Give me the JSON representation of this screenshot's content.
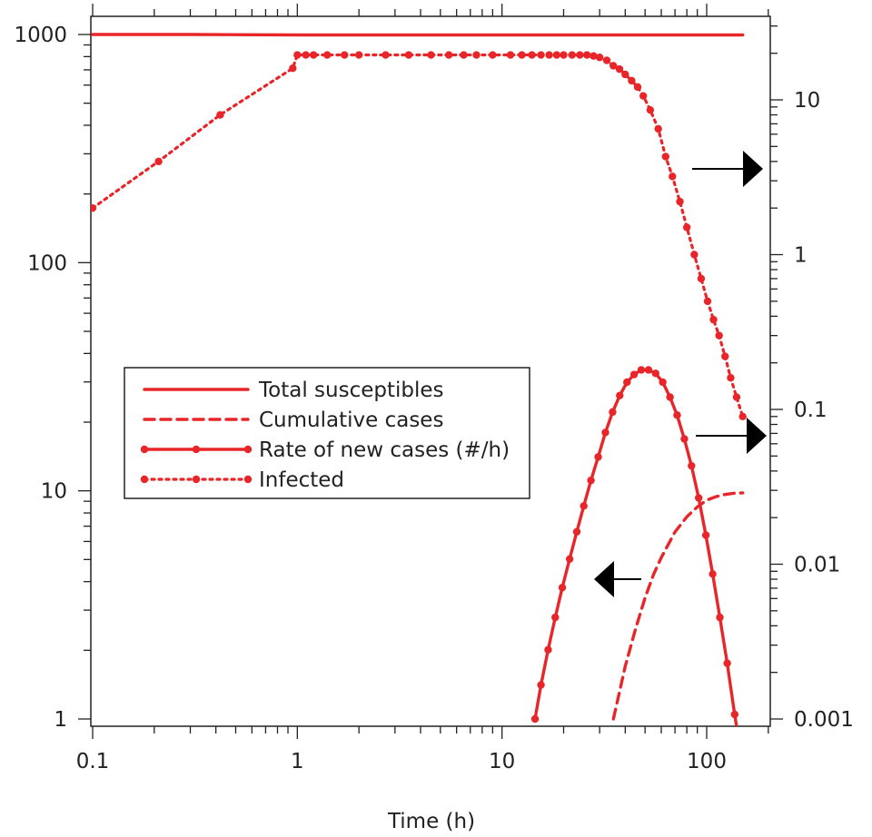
{
  "chart_data": {
    "type": "line",
    "title": "",
    "xlabel": "Time (h)",
    "ylabel": "",
    "y2label": "",
    "x_scale": "log",
    "y_scale": "log",
    "y2_scale": "log",
    "xlim": [
      0.1,
      200
    ],
    "ylim": [
      1,
      1000
    ],
    "y2lim": [
      0.001,
      30
    ],
    "grid": false,
    "legend_position": "center-left",
    "x_ticks": [
      {
        "value": 0.1,
        "label": "0.1"
      },
      {
        "value": 1,
        "label": "1"
      },
      {
        "value": 10,
        "label": "10"
      },
      {
        "value": 100,
        "label": "100"
      }
    ],
    "y_ticks": [
      {
        "value": 1,
        "label": "1"
      },
      {
        "value": 10,
        "label": "10"
      },
      {
        "value": 100,
        "label": "100"
      },
      {
        "value": 1000,
        "label": "1000"
      }
    ],
    "y2_ticks": [
      {
        "value": 0.001,
        "label": "0.001"
      },
      {
        "value": 0.01,
        "label": "0.01"
      },
      {
        "value": 0.1,
        "label": "0.1"
      },
      {
        "value": 1,
        "label": "1"
      },
      {
        "value": 10,
        "label": "10"
      }
    ],
    "series": [
      {
        "name": "Total susceptibles",
        "axis": "left",
        "style": "solid",
        "markers": false,
        "color": "#e8262a",
        "x": [
          0.1,
          0.3,
          1,
          3,
          10,
          30,
          150
        ],
        "y": [
          1000,
          1000,
          995,
          995,
          995,
          995,
          995
        ]
      },
      {
        "name": "Cumulative cases",
        "axis": "left",
        "style": "dashed",
        "markers": false,
        "color": "#e8262a",
        "x": [
          35,
          40,
          45,
          50,
          55,
          60,
          70,
          80,
          90,
          100,
          110,
          120,
          135,
          150
        ],
        "y": [
          1,
          1.7,
          2.5,
          3.4,
          4.3,
          5.1,
          6.6,
          7.7,
          8.5,
          9.1,
          9.4,
          9.6,
          9.75,
          9.8
        ]
      },
      {
        "name": "Rate of new cases (#/h)",
        "axis": "right",
        "style": "solid",
        "markers": true,
        "color": "#e8262a",
        "x": [
          14.5,
          15.5,
          16.8,
          18.2,
          19.7,
          21.4,
          23.2,
          25.1,
          27.2,
          29.5,
          32,
          34.7,
          37.6,
          40.8,
          44.2,
          47.9,
          52,
          56.3,
          61,
          66.2,
          71.7,
          77.8,
          84.3,
          91.4,
          99.1,
          107,
          116,
          126,
          137,
          150
        ],
        "y": [
          0.001,
          0.00166,
          0.0028,
          0.00453,
          0.00706,
          0.0108,
          0.0162,
          0.0238,
          0.0348,
          0.0493,
          0.0709,
          0.0962,
          0.123,
          0.15,
          0.168,
          0.18,
          0.18,
          0.171,
          0.15,
          0.12,
          0.0919,
          0.0645,
          0.0432,
          0.0268,
          0.0154,
          0.00864,
          0.00453,
          0.00229,
          0.00107,
          0.0005
        ]
      },
      {
        "name": "Infected",
        "axis": "right",
        "style": "dotted",
        "markers": true,
        "color": "#e8262a",
        "x": [
          0.1,
          0.21,
          0.42,
          0.95,
          1,
          1.1,
          1.2,
          1.4,
          1.7,
          2,
          2.7,
          3.5,
          4.5,
          5.5,
          6.5,
          7.5,
          9,
          11,
          12.5,
          14,
          15.5,
          17,
          18.5,
          20,
          22,
          24,
          26,
          28,
          30,
          32.5,
          35,
          37.5,
          40,
          43,
          46,
          49,
          53,
          58,
          63,
          68,
          74,
          80,
          87,
          94,
          101,
          108,
          115,
          123,
          131,
          140,
          150
        ],
        "y": [
          2,
          4,
          8,
          16,
          19.5,
          19.5,
          19.5,
          19.5,
          19.5,
          19.5,
          19.5,
          19.5,
          19.5,
          19.5,
          19.5,
          19.5,
          19.5,
          19.5,
          19.5,
          19.5,
          19.5,
          19.5,
          19.5,
          19.5,
          19.5,
          19.5,
          19.5,
          19.2,
          18.8,
          18,
          16.6,
          15.8,
          14.6,
          13.3,
          12.1,
          10.6,
          8.6,
          6.5,
          4.3,
          3.2,
          2.2,
          1.5,
          1,
          0.7,
          0.5,
          0.38,
          0.3,
          0.22,
          0.16,
          0.12,
          0.09
        ]
      }
    ],
    "legend": [
      {
        "label": "Total susceptibles",
        "style": "solid",
        "markers": false
      },
      {
        "label": "Cumulative cases",
        "style": "dashed",
        "markers": false
      },
      {
        "label": "Rate of new cases (#/h)",
        "style": "solid",
        "markers": true
      },
      {
        "label": "Infected",
        "style": "dotted",
        "markers": true
      }
    ],
    "annotations": [
      {
        "type": "arrow",
        "direction": "right",
        "points_to": "right axis",
        "near_series": "Infected"
      },
      {
        "type": "arrow",
        "direction": "right",
        "points_to": "right axis",
        "near_series": "Rate of new cases (#/h)"
      },
      {
        "type": "arrow",
        "direction": "left",
        "points_to": "left axis",
        "near_series": "Cumulative cases"
      }
    ]
  }
}
